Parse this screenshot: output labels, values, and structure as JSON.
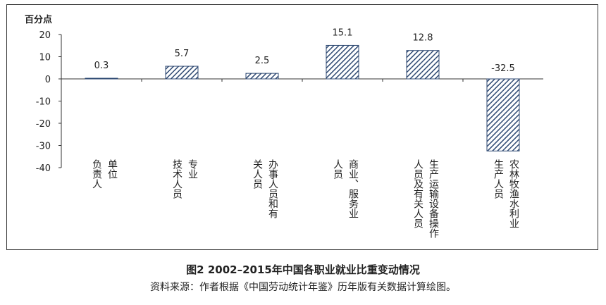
{
  "chart_data": {
    "type": "bar",
    "ylabel": "百分点",
    "ylim": [
      -40,
      20
    ],
    "yticks": [
      "20",
      "10",
      "0",
      "-10",
      "-20",
      "-30",
      "-40"
    ],
    "categories": [
      [
        "单位",
        "负责人"
      ],
      [
        "专业",
        "技术人员"
      ],
      [
        "办事人员和有",
        "关人员"
      ],
      [
        "商业、服务业",
        "人员"
      ],
      [
        "生产运输设备操作",
        "人员及有关人员"
      ],
      [
        "农林牧渔水利业",
        "生产人员"
      ]
    ],
    "values": [
      0.3,
      5.7,
      2.5,
      15.1,
      12.8,
      -32.5
    ],
    "data_labels": [
      "0.3",
      "5.7",
      "2.5",
      "15.1",
      "12.8",
      "-32.5"
    ],
    "bar_fill": "#2f4a73",
    "bar_hatch_light": "#ffffff"
  },
  "caption": {
    "title": "图2  2002–2015年中国各职业就业比重变动情况",
    "source": "资料来源：作者根据《中国劳动统计年鉴》历年版有关数据计算绘图。"
  }
}
